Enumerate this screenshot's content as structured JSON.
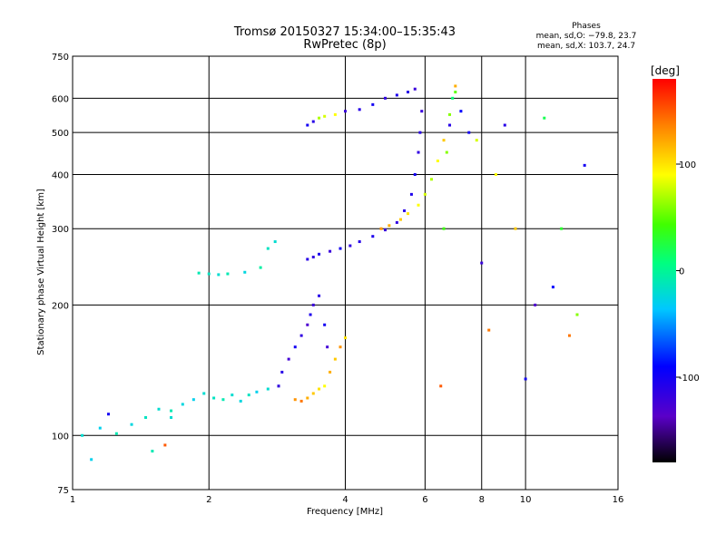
{
  "chart_data": {
    "type": "scatter",
    "title": "Tromsø 20150327 15:34:00–15:35:43",
    "subtitle": "RwPretec (8p)",
    "xlabel": "Frequency [MHz]",
    "ylabel": "Stationary phase Virtual Height [km]",
    "x_scale": "log",
    "y_scale": "log",
    "xlim": [
      1,
      16
    ],
    "ylim": [
      75,
      750
    ],
    "x_ticks": [
      1,
      2,
      4,
      6,
      8,
      10,
      16
    ],
    "y_ticks": [
      75,
      100,
      200,
      300,
      400,
      500,
      600,
      750
    ],
    "grid": true,
    "phases_box": {
      "heading": "Phases",
      "line_o": "mean, sd,O: −79.8, 23.7",
      "line_x": "mean, sd,X: 103.7, 24.7"
    },
    "colorbar": {
      "label": "[deg]",
      "range": [
        -180,
        180
      ],
      "ticks": [
        100,
        0,
        -100
      ],
      "colormap": "rainbow"
    },
    "series": [
      {
        "x": [
          1.05,
          1.15,
          1.25,
          1.35,
          1.45,
          1.55,
          1.65,
          1.75,
          1.85,
          1.95,
          2.05,
          2.15,
          2.25,
          2.35,
          2.45,
          2.55,
          2.7,
          2.85
        ],
        "y": [
          100,
          104,
          101,
          106,
          110,
          115,
          114,
          118,
          121,
          125,
          122,
          121,
          124,
          120,
          124,
          126,
          128,
          130
        ],
        "phase": [
          -20,
          -30,
          -10,
          -25,
          -15,
          -20,
          -10,
          -25,
          -30,
          -20,
          -15,
          -10,
          -20,
          -25,
          -15,
          -30,
          -20,
          -40
        ]
      },
      {
        "x": [
          1.9,
          2.0,
          2.1,
          2.2,
          2.4,
          2.6,
          2.7,
          2.8
        ],
        "y": [
          237,
          236,
          235,
          236,
          238,
          244,
          270,
          280
        ],
        "phase": [
          -10,
          -15,
          -20,
          -10,
          -25,
          -5,
          -15,
          -20
        ]
      },
      {
        "x": [
          2.85,
          2.9,
          3.0,
          3.1,
          3.2,
          3.3,
          3.35,
          3.4,
          3.5,
          3.6,
          3.65
        ],
        "y": [
          130,
          140,
          150,
          160,
          170,
          180,
          190,
          200,
          210,
          180,
          160
        ],
        "phase": [
          -120,
          -110,
          -125,
          -100,
          -115,
          -130,
          -105,
          -120,
          -110,
          -100,
          -125
        ]
      },
      {
        "x": [
          3.1,
          3.2,
          3.3,
          3.4,
          3.5,
          3.6,
          3.7,
          3.8,
          3.9,
          4.0
        ],
        "y": [
          121,
          120,
          122,
          125,
          128,
          130,
          140,
          150,
          160,
          168
        ],
        "phase": [
          130,
          140,
          120,
          110,
          100,
          90,
          120,
          110,
          130,
          100
        ]
      },
      {
        "x": [
          3.3,
          3.4,
          3.5,
          3.7,
          3.9,
          4.1,
          4.3,
          4.6,
          4.9,
          5.2,
          5.4,
          5.6,
          5.7,
          5.8,
          5.85,
          5.9
        ],
        "y": [
          255,
          258,
          262,
          266,
          270,
          274,
          280,
          288,
          298,
          310,
          330,
          360,
          400,
          450,
          500,
          560
        ],
        "phase": [
          -110,
          -115,
          -105,
          -120,
          -100,
          -115,
          -110,
          -105,
          -120,
          -115,
          -110,
          -105,
          -100,
          -115,
          -110,
          -120
        ]
      },
      {
        "x": [
          4.8,
          5.0,
          5.3,
          5.5,
          5.8,
          6.0,
          6.2,
          6.4,
          6.6,
          6.8,
          7.0
        ],
        "y": [
          300,
          305,
          315,
          325,
          340,
          360,
          390,
          430,
          480,
          550,
          620
        ],
        "phase": [
          130,
          120,
          110,
          100,
          90,
          80,
          70,
          90,
          110,
          60,
          50
        ]
      },
      {
        "x": [
          3.3,
          3.4,
          3.5,
          3.6,
          3.8,
          4.0,
          4.3,
          4.6,
          4.9,
          5.2,
          5.5,
          5.7
        ],
        "y": [
          520,
          530,
          540,
          545,
          550,
          560,
          565,
          580,
          600,
          610,
          620,
          630
        ],
        "phase": [
          -100,
          -110,
          70,
          80,
          90,
          -120,
          -110,
          -100,
          -115,
          -105,
          -110,
          -120
        ]
      },
      {
        "x": [
          6.5,
          6.6,
          6.7,
          6.8,
          6.9,
          7.0,
          7.2,
          7.5,
          7.8,
          8.0,
          8.3,
          8.6,
          9.0,
          9.5,
          10,
          10.5,
          11,
          11.5,
          12,
          12.5,
          13,
          13.5
        ],
        "y": [
          130,
          300,
          450,
          520,
          600,
          640,
          560,
          500,
          480,
          250,
          175,
          400,
          520,
          300,
          135,
          200,
          540,
          220,
          300,
          170,
          190,
          420
        ],
        "phase": [
          150,
          40,
          60,
          -110,
          10,
          120,
          -90,
          -100,
          80,
          -120,
          140,
          90,
          -110,
          110,
          -100,
          -130,
          20,
          -90,
          30,
          140,
          60,
          -100
        ]
      },
      {
        "x": [
          1.1,
          1.2,
          1.5,
          1.6,
          1.65
        ],
        "y": [
          88,
          112,
          92,
          95,
          110
        ],
        "phase": [
          -30,
          -100,
          -10,
          150,
          -20
        ]
      }
    ]
  }
}
